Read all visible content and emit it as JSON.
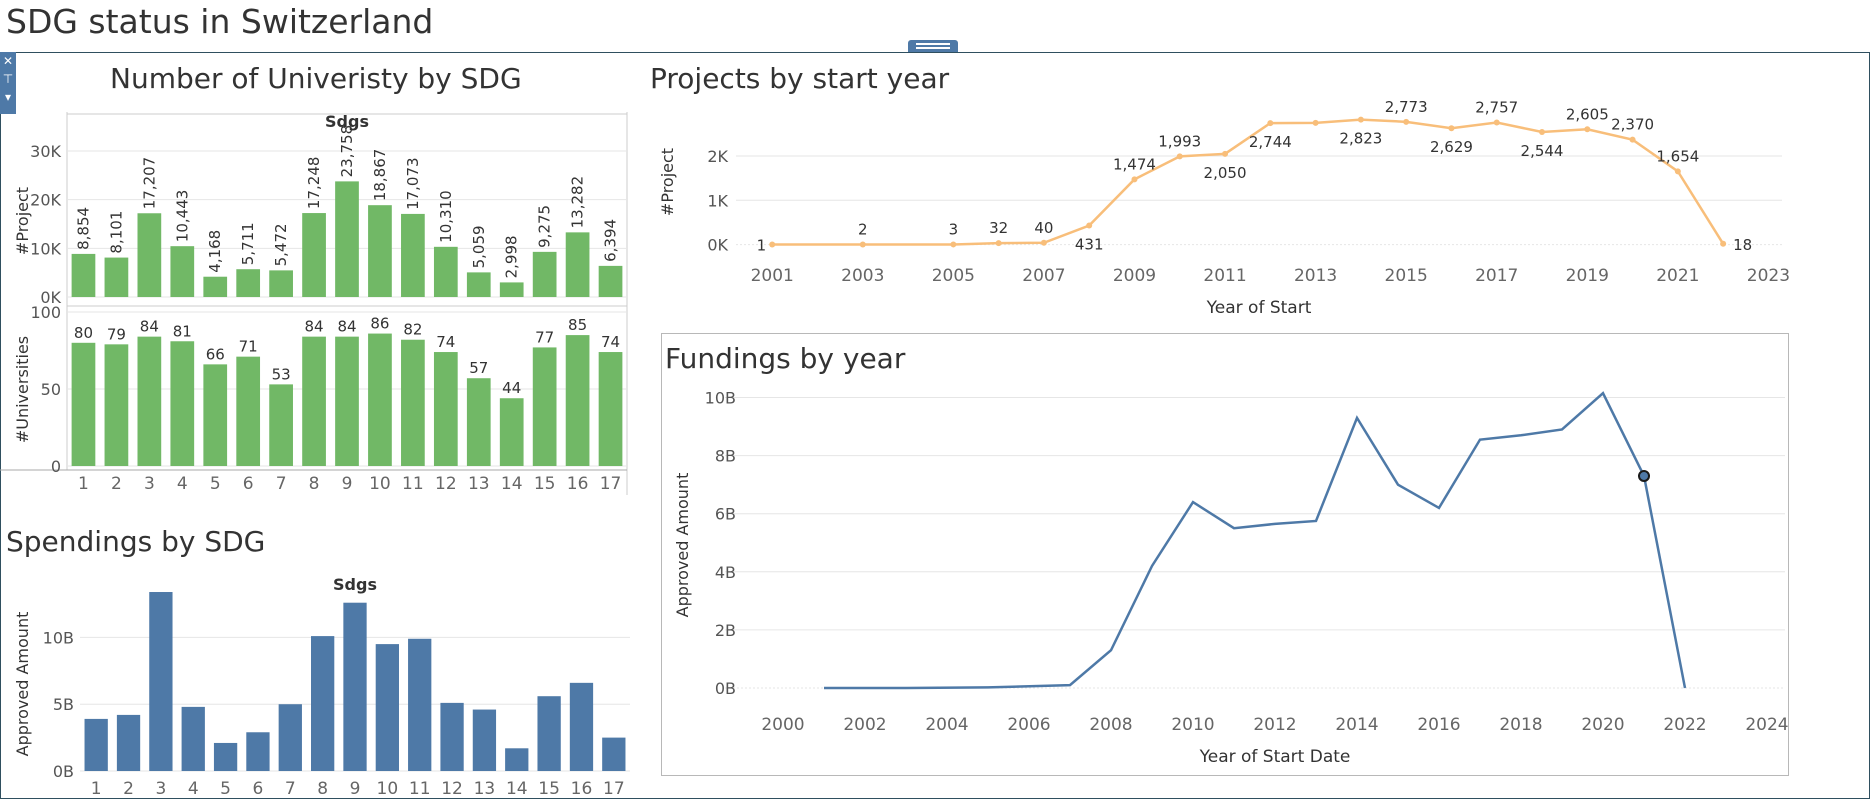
{
  "dashboard": {
    "title": "SDG status in Switzerland"
  },
  "icons": {
    "close": "close-icon",
    "pin": "pin-icon",
    "menu": "dropdown-arrow-icon",
    "grip": "drag-handle-icon"
  },
  "colors": {
    "green": "#71b866",
    "orange": "#f8be7a",
    "blue": "#4e79a7",
    "grid": "#e6e6e6"
  },
  "panels": {
    "universities": {
      "title": "Number of Univeristy by SDG"
    },
    "projects": {
      "title": "Projects by start year"
    },
    "spendings": {
      "title": "Spendings by SDG"
    },
    "fundings": {
      "title": "Fundings by year"
    }
  },
  "chart_data": [
    {
      "id": "universities",
      "type": "bar",
      "title": "Number of Univeristy by SDG",
      "xlabel": "Sdgs",
      "categories": [
        "1",
        "2",
        "3",
        "4",
        "5",
        "6",
        "7",
        "8",
        "9",
        "10",
        "11",
        "12",
        "13",
        "14",
        "15",
        "16",
        "17"
      ],
      "series": [
        {
          "name": "#Project",
          "ylabel": "#Project",
          "values": [
            8854,
            8101,
            17207,
            10443,
            4168,
            5711,
            5472,
            17248,
            23758,
            18867,
            17073,
            10310,
            5059,
            2998,
            9275,
            13282,
            6394
          ],
          "labels": [
            "8,854",
            "8,101",
            "17,207",
            "10,443",
            "4,168",
            "5,711",
            "5,472",
            "17,248",
            "23,758",
            "18,867",
            "17,073",
            "10,310",
            "5,059",
            "2,998",
            "9,275",
            "13,282",
            "6,394"
          ],
          "ylim": [
            0,
            30000
          ],
          "ticks": [
            0,
            10000,
            20000,
            30000
          ],
          "tick_labels": [
            "0K",
            "10K",
            "20K",
            "30K"
          ]
        },
        {
          "name": "#Universities",
          "ylabel": "#Universities",
          "values": [
            80,
            79,
            84,
            81,
            66,
            71,
            53,
            84,
            84,
            86,
            82,
            74,
            57,
            44,
            77,
            85,
            74
          ],
          "labels": [
            "80",
            "79",
            "84",
            "81",
            "66",
            "71",
            "53",
            "84",
            "84",
            "86",
            "82",
            "74",
            "57",
            "44",
            "77",
            "85",
            "74"
          ],
          "ylim": [
            0,
            100
          ],
          "ticks": [
            0,
            50,
            100
          ],
          "tick_labels": [
            "0",
            "50",
            "100"
          ]
        }
      ],
      "color": "#71b866"
    },
    {
      "id": "projects",
      "type": "line",
      "title": "Projects by start year",
      "xlabel": "Year of Start",
      "ylabel": "#Project",
      "x": [
        2001,
        2003,
        2005,
        2006,
        2007,
        2008,
        2009,
        2010,
        2011,
        2012,
        2013,
        2014,
        2015,
        2016,
        2017,
        2018,
        2019,
        2020,
        2021,
        2022
      ],
      "y": [
        1,
        2,
        3,
        32,
        40,
        431,
        1474,
        1993,
        2050,
        2744,
        2750,
        2823,
        2773,
        2629,
        2757,
        2544,
        2605,
        2370,
        1654,
        18
      ],
      "point_labels": {
        "2001": "1",
        "2003": "2",
        "2005": "3",
        "2006": "32",
        "2007": "40",
        "2008": "431",
        "2009": "1,474",
        "2010": "1,993",
        "2011": "2,050",
        "2012": "2,744",
        "2014": "2,823",
        "2015": "2,773",
        "2016": "2,629",
        "2017": "2,757",
        "2018": "2,544",
        "2019": "2,605",
        "2020": "2,370",
        "2021": "1,654",
        "2022": "18"
      },
      "xlim": [
        2000.2,
        2023.3
      ],
      "xticks": [
        2001,
        2003,
        2005,
        2007,
        2009,
        2011,
        2013,
        2015,
        2017,
        2019,
        2021,
        2023
      ],
      "ylim": [
        -100,
        2950
      ],
      "yticks": [
        0,
        1000,
        2000
      ],
      "ytick_labels": [
        "0K",
        "1K",
        "2K"
      ],
      "color": "#f8be7a"
    },
    {
      "id": "spendings",
      "type": "bar",
      "title": "Spendings by SDG",
      "xlabel": "Sdgs",
      "ylabel": "Approved Amount",
      "categories": [
        "1",
        "2",
        "3",
        "4",
        "5",
        "6",
        "7",
        "8",
        "9",
        "10",
        "11",
        "12",
        "13",
        "14",
        "15",
        "16",
        "17"
      ],
      "values": [
        3.9,
        4.2,
        13.4,
        4.8,
        2.1,
        2.9,
        5.0,
        10.1,
        12.6,
        9.5,
        9.9,
        5.1,
        4.6,
        1.7,
        5.6,
        6.6,
        2.5
      ],
      "ylim": [
        0,
        14
      ],
      "ticks": [
        0,
        5,
        10
      ],
      "tick_labels": [
        "0B",
        "5B",
        "10B"
      ],
      "color": "#4e79a7"
    },
    {
      "id": "fundings",
      "type": "line",
      "title": "Fundings by year",
      "xlabel": "Year of Start Date",
      "ylabel": "Approved Amount",
      "x": [
        2001,
        2003,
        2005,
        2007,
        2008,
        2009,
        2010,
        2011,
        2012,
        2013,
        2014,
        2015,
        2016,
        2017,
        2018,
        2019,
        2020,
        2021,
        2022
      ],
      "y": [
        0.0,
        0.0,
        0.02,
        0.1,
        1.3,
        4.2,
        6.4,
        5.5,
        5.65,
        5.75,
        9.3,
        7.0,
        6.2,
        8.55,
        8.7,
        8.9,
        10.15,
        7.3,
        0.0
      ],
      "highlight_x": 2021,
      "xlim": [
        2000,
        2024
      ],
      "xticks": [
        2000,
        2002,
        2004,
        2006,
        2008,
        2010,
        2012,
        2014,
        2016,
        2018,
        2020,
        2022,
        2024
      ],
      "ylim": [
        0,
        10.5
      ],
      "yticks": [
        0,
        2,
        4,
        6,
        8,
        10
      ],
      "ytick_labels": [
        "0B",
        "2B",
        "4B",
        "6B",
        "8B",
        "10B"
      ],
      "color": "#4e79a7"
    }
  ]
}
